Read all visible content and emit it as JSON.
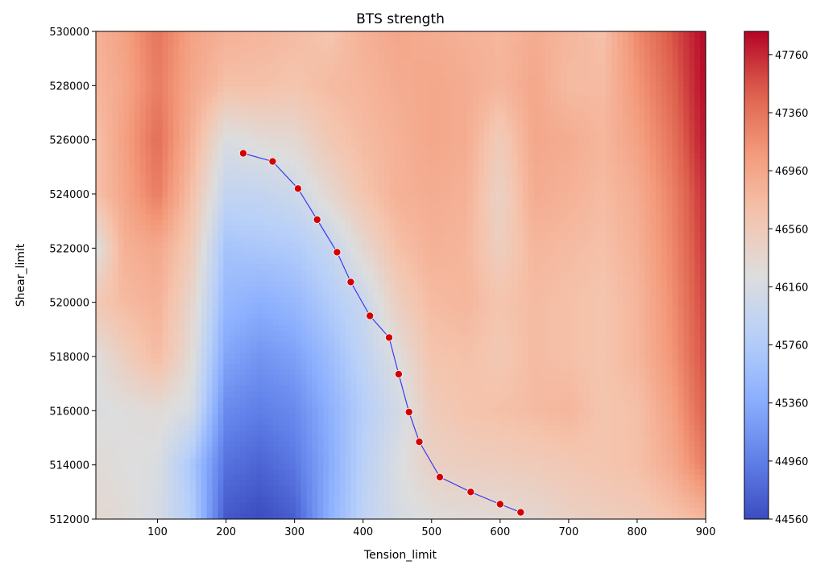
{
  "chart_data": {
    "type": "heatmap",
    "title": "BTS strength",
    "xlabel": "Tension_limit",
    "ylabel": "Shear_limit",
    "xlim": [
      10,
      900
    ],
    "ylim": [
      512000,
      530000
    ],
    "x_ticks": [
      100,
      200,
      300,
      400,
      500,
      600,
      700,
      800,
      900
    ],
    "x_tick_labels": [
      "100",
      "200",
      "300",
      "400",
      "500",
      "600",
      "700",
      "800",
      "900"
    ],
    "y_ticks": [
      512000,
      514000,
      516000,
      518000,
      520000,
      522000,
      524000,
      526000,
      528000,
      530000
    ],
    "y_tick_labels": [
      "512000",
      "514000",
      "516000",
      "518000",
      "520000",
      "522000",
      "524000",
      "526000",
      "528000",
      "530000"
    ],
    "colormap": "coolwarm",
    "colorbar": {
      "min": 44560,
      "max": 47920,
      "ticks": [
        44560,
        44960,
        45360,
        45760,
        46160,
        46560,
        46960,
        47360,
        47760
      ],
      "tick_labels": [
        "44560",
        "44960",
        "45360",
        "45760",
        "46160",
        "46560",
        "46960",
        "47360",
        "47760"
      ]
    },
    "contour_levels": [
      46160
    ],
    "contour_color": "#3a3af0",
    "marker_color": "#d40000",
    "boundary_points": [
      {
        "x": 225,
        "y": 525500
      },
      {
        "x": 268,
        "y": 525200
      },
      {
        "x": 305,
        "y": 524200
      },
      {
        "x": 333,
        "y": 523050
      },
      {
        "x": 362,
        "y": 521850
      },
      {
        "x": 382,
        "y": 520750
      },
      {
        "x": 410,
        "y": 519500
      },
      {
        "x": 438,
        "y": 518700
      },
      {
        "x": 452,
        "y": 517350
      },
      {
        "x": 467,
        "y": 515950
      },
      {
        "x": 482,
        "y": 514850
      },
      {
        "x": 512,
        "y": 513550
      },
      {
        "x": 557,
        "y": 513000
      },
      {
        "x": 600,
        "y": 512550
      },
      {
        "x": 630,
        "y": 512250
      }
    ],
    "grid": {
      "x": [
        10,
        50,
        100,
        150,
        200,
        250,
        300,
        350,
        400,
        450,
        500,
        550,
        600,
        650,
        700,
        750,
        800,
        850,
        900
      ],
      "y": [
        512000,
        514000,
        516000,
        518000,
        520000,
        522000,
        524000,
        526000,
        528000,
        530000
      ],
      "z": [
        [
          46350,
          46300,
          46150,
          45800,
          44650,
          44560,
          44700,
          45400,
          45900,
          46150,
          46250,
          46300,
          46300,
          46350,
          46450,
          46500,
          46550,
          46650,
          46800
        ],
        [
          46300,
          46250,
          46200,
          45700,
          44850,
          44750,
          44900,
          45350,
          45850,
          46200,
          46450,
          46500,
          46520,
          46550,
          46600,
          46650,
          46700,
          46900,
          47300
        ],
        [
          46200,
          46250,
          46300,
          46150,
          45050,
          44950,
          45050,
          45400,
          45800,
          46100,
          46550,
          46650,
          46700,
          46750,
          46800,
          46650,
          46700,
          47000,
          47500
        ],
        [
          46250,
          46500,
          46750,
          46300,
          45300,
          45150,
          45250,
          45550,
          45900,
          46250,
          46650,
          46700,
          46600,
          46750,
          46700,
          46650,
          46800,
          47100,
          47600
        ],
        [
          46600,
          46750,
          46850,
          46400,
          45500,
          45400,
          45500,
          45750,
          46000,
          46500,
          46750,
          46800,
          46650,
          46750,
          46700,
          46650,
          46800,
          47150,
          47650
        ],
        [
          46200,
          46850,
          46950,
          46550,
          45650,
          45700,
          45750,
          45950,
          46350,
          46700,
          46850,
          46800,
          46500,
          46800,
          46750,
          46700,
          46850,
          47200,
          47700
        ],
        [
          46700,
          46950,
          47300,
          46700,
          45950,
          45950,
          46050,
          46350,
          46650,
          46850,
          46900,
          46850,
          46450,
          46900,
          46850,
          46750,
          46900,
          47250,
          47750
        ],
        [
          46700,
          47000,
          47400,
          46850,
          46200,
          46300,
          46350,
          46600,
          46750,
          46850,
          46950,
          46900,
          46550,
          46950,
          46900,
          46800,
          47000,
          47350,
          47850
        ],
        [
          46800,
          46950,
          47300,
          46950,
          46700,
          46700,
          46650,
          46750,
          46800,
          46900,
          46950,
          46900,
          46800,
          46950,
          46750,
          46750,
          47100,
          47450,
          47900
        ],
        [
          46850,
          47000,
          47350,
          47000,
          46850,
          46800,
          46750,
          46650,
          46850,
          46950,
          46900,
          46850,
          46800,
          46900,
          46800,
          46700,
          47200,
          47550,
          47920
        ]
      ]
    }
  }
}
